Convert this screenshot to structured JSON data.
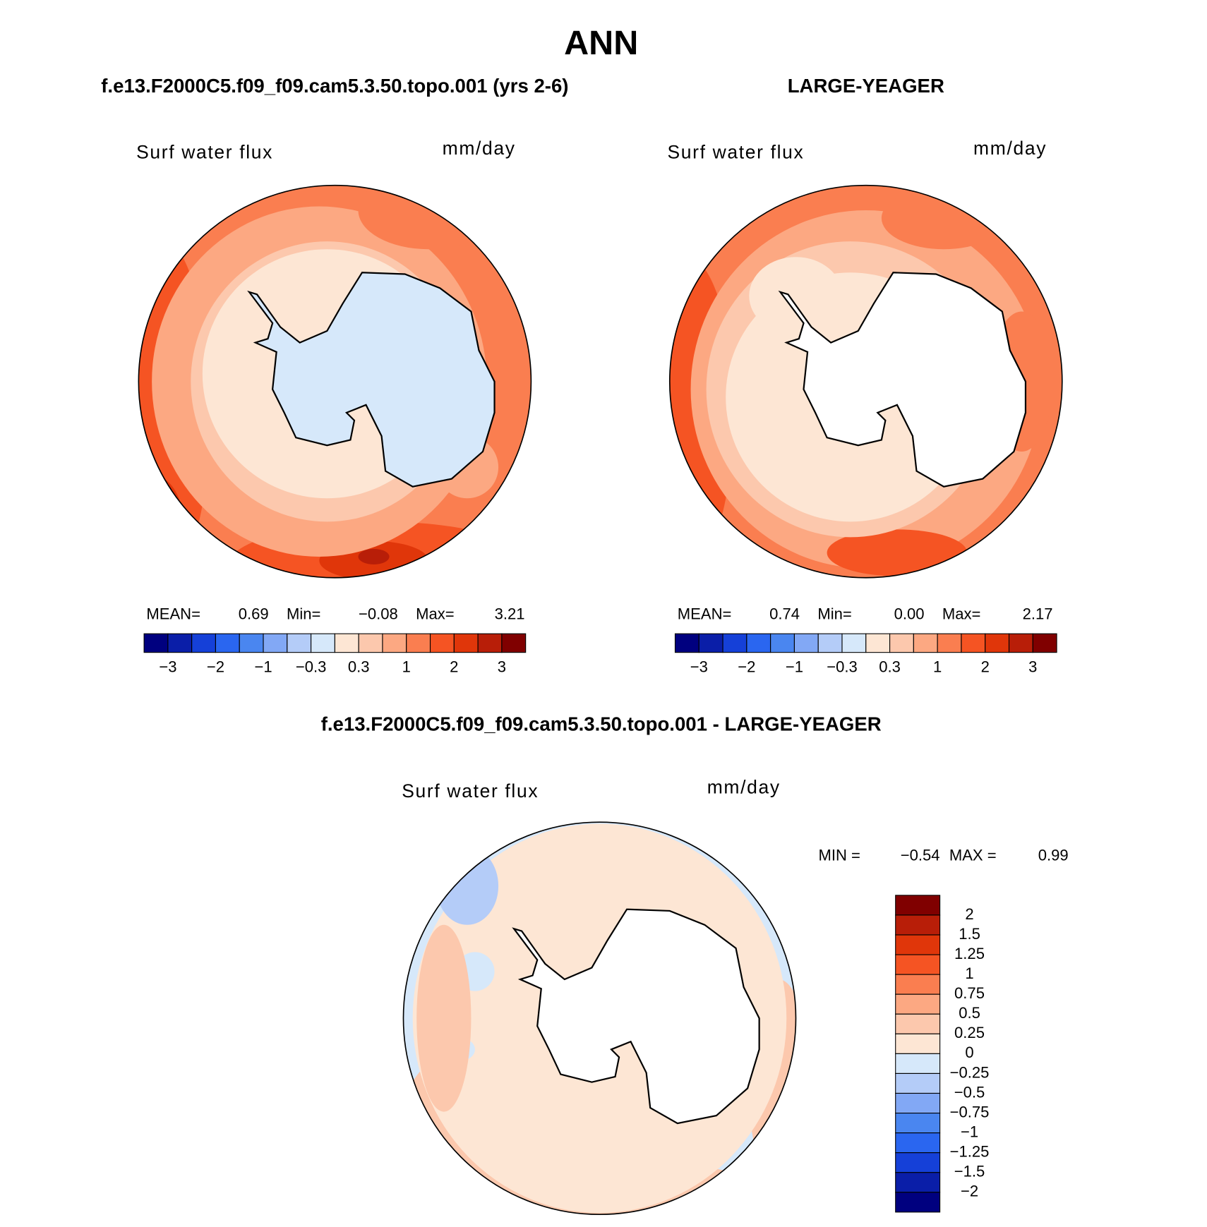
{
  "title": "ANN",
  "panels": [
    {
      "title": "f.e13.F2000C5.f09_f09.cam5.3.50.topo.001 (yrs 2-6)",
      "variable": "Surf water flux",
      "units": "mm/day",
      "stats": [
        {
          "name": "MEAN=",
          "value": 0.69,
          "label": "0.69"
        },
        {
          "name": "Min=",
          "value": -0.08,
          "label": "−0.08"
        },
        {
          "name": "Max=",
          "value": 3.21,
          "label": "3.21"
        }
      ],
      "colorbar": {
        "colors": [
          "#00007f",
          "#0a1ea8",
          "#1540d8",
          "#2a66f0",
          "#4a86f0",
          "#82a8f5",
          "#b4ccf8",
          "#d6e8fa",
          "#fde6d4",
          "#fcc8ad",
          "#fca882",
          "#fa7e50",
          "#f55423",
          "#e0360a",
          "#b81e08",
          "#800000"
        ],
        "labels": [
          "−3",
          null,
          "−2",
          null,
          "−1",
          null,
          "−0.3",
          null,
          "0.3",
          null,
          "1",
          null,
          "2",
          null,
          "3"
        ]
      }
    },
    {
      "title": "LARGE-YEAGER",
      "variable": "Surf water flux",
      "units": "mm/day",
      "stats": [
        {
          "name": "MEAN=",
          "value": 0.74,
          "label": "0.74"
        },
        {
          "name": "Min=",
          "value": 0.0,
          "label": "0.00"
        },
        {
          "name": "Max=",
          "value": 2.17,
          "label": "2.17"
        }
      ],
      "colorbar": {
        "colors": [
          "#00007f",
          "#0a1ea8",
          "#1540d8",
          "#2a66f0",
          "#4a86f0",
          "#82a8f5",
          "#b4ccf8",
          "#d6e8fa",
          "#fde6d4",
          "#fcc8ad",
          "#fca882",
          "#fa7e50",
          "#f55423",
          "#e0360a",
          "#b81e08",
          "#800000"
        ],
        "labels": [
          "−3",
          null,
          "−2",
          null,
          "−1",
          null,
          "−0.3",
          null,
          "0.3",
          null,
          "1",
          null,
          "2",
          null,
          "3"
        ]
      }
    },
    {
      "title": "f.e13.F2000C5.f09_f09.cam5.3.50.topo.001 - LARGE-YEAGER",
      "variable": "Surf water flux",
      "units": "mm/day",
      "stats": [
        {
          "name": "MIN =",
          "value": -0.54,
          "label": "−0.54"
        },
        {
          "name": "MAX =",
          "value": 0.99,
          "label": "0.99"
        }
      ],
      "colorbar": {
        "colors": [
          "#800000",
          "#b81e08",
          "#e0360a",
          "#f55423",
          "#fa7e50",
          "#fca882",
          "#fcc8ad",
          "#fde6d4",
          "#d6e8fa",
          "#b4ccf8",
          "#82a8f5",
          "#4a86f0",
          "#2a66f0",
          "#1540d8",
          "#0a1ea8",
          "#00007f"
        ],
        "labels": [
          "2",
          "1.5",
          "1.25",
          "1",
          "0.75",
          "0.5",
          "0.25",
          "0",
          "−0.25",
          "−0.5",
          "−0.75",
          "−1",
          "−1.25",
          "−1.5",
          "−2"
        ]
      }
    }
  ]
}
